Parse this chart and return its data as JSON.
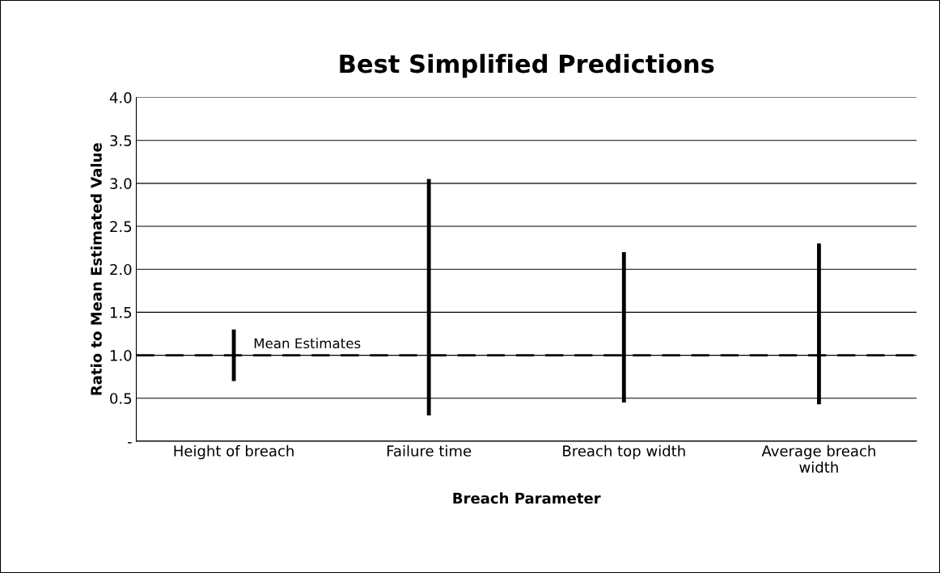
{
  "chart_data": {
    "type": "bar",
    "title": "Best Simplified Predictions",
    "xlabel": "Breach Parameter",
    "ylabel": "Ratio to Mean Estimated Value",
    "categories": [
      "Height of breach",
      "Failure time",
      "Breach top width",
      "Average breach\nwidth"
    ],
    "base": [
      0.7,
      0.3,
      0.45,
      0.43
    ],
    "values": [
      0.6,
      2.75,
      1.75,
      1.87
    ],
    "color": "#000000",
    "ylim": [
      0,
      4
    ],
    "yticks": [
      {
        "value": 0,
        "label": "-"
      },
      {
        "value": 0.5,
        "label": "0.5"
      },
      {
        "value": 1,
        "label": "1.0"
      },
      {
        "value": 1.5,
        "label": "1.5"
      },
      {
        "value": 2,
        "label": "2.0"
      },
      {
        "value": 2.5,
        "label": "2.5"
      },
      {
        "value": 3,
        "label": "3.0"
      },
      {
        "value": 3.5,
        "label": "3.5"
      },
      {
        "value": 4,
        "label": "4.0"
      }
    ],
    "ref_lines": [
      {
        "axis": "y",
        "value": 1,
        "label": "Mean Estimates",
        "color": "#000000",
        "line_style": "dashed"
      }
    ],
    "grid": "y"
  }
}
